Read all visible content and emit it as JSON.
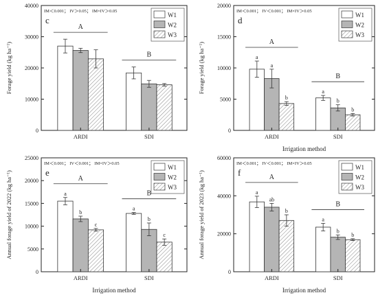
{
  "chart_data": [
    {
      "panel_letter": "c",
      "type": "bar",
      "stats": "IM＜0.001； IV＞0.05； IM×IV＞0.05",
      "xlabel": "",
      "ylabel": "Forage yield (kg ha⁻¹)",
      "ylim": [
        0,
        40000
      ],
      "yticks": [
        0,
        10000,
        20000,
        30000,
        40000
      ],
      "categories": [
        "ARDI",
        "SDI"
      ],
      "series": [
        {
          "name": "W1",
          "values": [
            27000,
            18400
          ],
          "errors": [
            2200,
            1900
          ],
          "letters": [
            "",
            ""
          ]
        },
        {
          "name": "W2",
          "values": [
            25600,
            14900
          ],
          "errors": [
            700,
            1100
          ],
          "letters": [
            "",
            ""
          ]
        },
        {
          "name": "W3",
          "values": [
            22900,
            14600
          ],
          "errors": [
            2900,
            400
          ],
          "letters": [
            "",
            ""
          ]
        }
      ],
      "group_letters": [
        "A",
        "B"
      ],
      "legend": "top-right"
    },
    {
      "panel_letter": "d",
      "type": "bar",
      "stats": "IM＜0.001； IV＜0.001； IM×IV＞0.05",
      "xlabel": "Irrigation method",
      "ylabel": "Forage yield (kg ha⁻¹)",
      "ylim": [
        0,
        20000
      ],
      "yticks": [
        0,
        5000,
        10000,
        15000,
        20000
      ],
      "categories": [
        "ARDI",
        "SDI"
      ],
      "series": [
        {
          "name": "W1",
          "values": [
            9800,
            5200
          ],
          "errors": [
            1300,
            400
          ],
          "letters": [
            "a",
            "a"
          ]
        },
        {
          "name": "W2",
          "values": [
            8300,
            3600
          ],
          "errors": [
            1500,
            500
          ],
          "letters": [
            "a",
            "b"
          ]
        },
        {
          "name": "W3",
          "values": [
            4300,
            2500
          ],
          "errors": [
            300,
            200
          ],
          "letters": [
            "b",
            "b"
          ]
        }
      ],
      "group_letters": [
        "A",
        "B"
      ],
      "legend": "top-right"
    },
    {
      "panel_letter": "e",
      "type": "bar",
      "stats": "IM＜0.001； IV＜0.001； IM×IV＞0.05",
      "xlabel": "Irrigation method",
      "ylabel": "Annual forage yield of 2022 (kg ha⁻¹)",
      "ylim": [
        0,
        25000
      ],
      "yticks": [
        0,
        5000,
        10000,
        15000,
        20000,
        25000
      ],
      "categories": [
        "ARDI",
        "SDI"
      ],
      "series": [
        {
          "name": "W1",
          "values": [
            15500,
            12800
          ],
          "errors": [
            800,
            200
          ],
          "letters": [
            "a",
            "a"
          ]
        },
        {
          "name": "W2",
          "values": [
            11600,
            9300
          ],
          "errors": [
            600,
            1400
          ],
          "letters": [
            "b",
            "b"
          ]
        },
        {
          "name": "W3",
          "values": [
            9200,
            6500
          ],
          "errors": [
            300,
            700
          ],
          "letters": [
            "c",
            "c"
          ]
        }
      ],
      "group_letters": [
        "A",
        "B"
      ],
      "legend": "top-right"
    },
    {
      "panel_letter": "f",
      "type": "bar",
      "stats": "IM＜0.001； IV＜0.001； IM×IV＞0.05",
      "xlabel": "Irrigation method",
      "ylabel": "Annual forage yield of 2023 (kg ha⁻¹)",
      "ylim": [
        0,
        60000
      ],
      "yticks": [
        0,
        20000,
        40000,
        60000
      ],
      "categories": [
        "ARDI",
        "SDI"
      ],
      "series": [
        {
          "name": "W1",
          "values": [
            36800,
            23500
          ],
          "errors": [
            3000,
            2000
          ],
          "letters": [
            "a",
            "a"
          ]
        },
        {
          "name": "W2",
          "values": [
            34000,
            18200
          ],
          "errors": [
            2000,
            1200
          ],
          "letters": [
            "ab",
            "b"
          ]
        },
        {
          "name": "W3",
          "values": [
            27000,
            16900
          ],
          "errors": [
            3000,
            500
          ],
          "letters": [
            "b",
            "b"
          ]
        }
      ],
      "group_letters": [
        "A",
        "B"
      ],
      "legend": "top-right"
    }
  ]
}
